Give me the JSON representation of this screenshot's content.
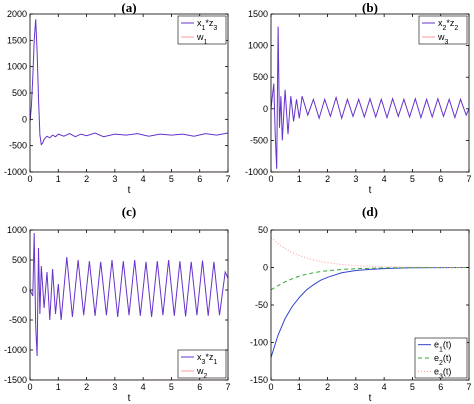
{
  "chart_data": [
    {
      "panel_label": "(a)",
      "type": "line",
      "xlabel": "t",
      "xlim": [
        0,
        7
      ],
      "ylim": [
        -1000,
        2000
      ],
      "xticks": [
        "0",
        "1",
        "2",
        "3",
        "4",
        "5",
        "6",
        "7"
      ],
      "yticks": [
        "-1000",
        "-500",
        "0",
        "500",
        "1000",
        "1500",
        "2000"
      ],
      "legend_position": "top-right",
      "series": [
        {
          "name": "x1*z3",
          "label_parts": [
            [
              "x",
              "1"
            ],
            [
              "*z",
              "3"
            ]
          ],
          "color": "#6633cc",
          "x": [
            0,
            0.05,
            0.1,
            0.15,
            0.2,
            0.25,
            0.3,
            0.35,
            0.4,
            0.45,
            0.5,
            0.6,
            0.7,
            0.8,
            0.9,
            1.0,
            1.2,
            1.4,
            1.6,
            1.8,
            2.0,
            2.3,
            2.6,
            3.0,
            3.4,
            3.8,
            4.2,
            4.6,
            5.0,
            5.4,
            5.8,
            6.2,
            6.6,
            7.0
          ],
          "y": [
            -50,
            250,
            800,
            1500,
            1900,
            1300,
            400,
            -300,
            -480,
            -450,
            -380,
            -320,
            -350,
            -300,
            -330,
            -280,
            -320,
            -270,
            -330,
            -280,
            -310,
            -260,
            -330,
            -280,
            -300,
            -270,
            -320,
            -280,
            -300,
            -280,
            -320,
            -270,
            -300,
            -260
          ]
        },
        {
          "name": "w1",
          "label_parts": [
            [
              "w",
              "1"
            ]
          ],
          "color": "#ff9999",
          "x": [
            0,
            7
          ],
          "y": [
            -1000,
            -1000
          ]
        }
      ]
    },
    {
      "panel_label": "(b)",
      "type": "line",
      "xlabel": "t",
      "xlim": [
        0,
        7
      ],
      "ylim": [
        -1000,
        1500
      ],
      "xticks": [
        "0",
        "1",
        "2",
        "3",
        "4",
        "5",
        "6",
        "7"
      ],
      "yticks": [
        "-1000",
        "-500",
        "0",
        "500",
        "1000",
        "1500"
      ],
      "legend_position": "top-right",
      "series": [
        {
          "name": "x2*z2",
          "label_parts": [
            [
              "x",
              "2"
            ],
            [
              "*z",
              "2"
            ]
          ],
          "color": "#6633cc",
          "x": [
            0,
            0.1,
            0.15,
            0.2,
            0.25,
            0.3,
            0.35,
            0.4,
            0.5,
            0.6,
            0.7,
            0.8,
            0.9,
            1.0,
            1.1,
            1.3,
            1.5,
            1.7,
            1.9,
            2.1,
            2.3,
            2.5,
            2.7,
            2.9,
            3.1,
            3.3,
            3.5,
            3.7,
            3.9,
            4.1,
            4.3,
            4.5,
            4.7,
            4.9,
            5.1,
            5.3,
            5.5,
            5.7,
            5.9,
            6.1,
            6.3,
            6.5,
            6.7,
            6.9,
            7.0
          ],
          "y": [
            0,
            400,
            -400,
            -950,
            1300,
            -300,
            200,
            -500,
            300,
            -400,
            200,
            -200,
            150,
            -150,
            200,
            -100,
            150,
            -150,
            150,
            -120,
            180,
            -150,
            150,
            -120,
            150,
            -130,
            160,
            -130,
            150,
            -140,
            160,
            -120,
            150,
            -130,
            160,
            -140,
            150,
            -130,
            160,
            -120,
            150,
            -140,
            150,
            -100,
            0
          ]
        },
        {
          "name": "w3",
          "label_parts": [
            [
              "w",
              "3"
            ]
          ],
          "color": "#ff9999",
          "x": [
            0,
            7
          ],
          "y": [
            -1000,
            -1000
          ]
        }
      ]
    },
    {
      "panel_label": "(c)",
      "type": "line",
      "xlabel": "t",
      "xlim": [
        0,
        7
      ],
      "ylim": [
        -1500,
        1000
      ],
      "xticks": [
        "0",
        "1",
        "2",
        "3",
        "4",
        "5",
        "6",
        "7"
      ],
      "yticks": [
        "-1500",
        "-1000",
        "-500",
        "0",
        "500",
        "1000"
      ],
      "legend_position": "bottom-right",
      "series": [
        {
          "name": "x3*z1",
          "label_parts": [
            [
              "x",
              "3"
            ],
            [
              "*z",
              "1"
            ]
          ],
          "color": "#6633cc",
          "x": [
            0,
            0.1,
            0.15,
            0.2,
            0.25,
            0.3,
            0.35,
            0.4,
            0.5,
            0.6,
            0.7,
            0.8,
            0.9,
            1.0,
            1.1,
            1.3,
            1.5,
            1.7,
            1.9,
            2.1,
            2.3,
            2.5,
            2.7,
            2.9,
            3.1,
            3.3,
            3.5,
            3.7,
            3.9,
            4.1,
            4.3,
            4.5,
            4.7,
            4.9,
            5.1,
            5.3,
            5.5,
            5.7,
            5.9,
            6.1,
            6.3,
            6.5,
            6.7,
            6.9,
            7.0
          ],
          "y": [
            0,
            -100,
            950,
            -600,
            -1100,
            700,
            -400,
            400,
            -300,
            300,
            -500,
            350,
            -400,
            100,
            -500,
            550,
            -450,
            500,
            -420,
            480,
            -430,
            470,
            -420,
            500,
            -450,
            480,
            -420,
            500,
            -430,
            470,
            -450,
            480,
            -420,
            500,
            -430,
            480,
            -440,
            470,
            -420,
            490,
            -430,
            470,
            -420,
            300,
            200
          ]
        },
        {
          "name": "w2",
          "label_parts": [
            [
              "w",
              "2"
            ]
          ],
          "color": "#ff9999",
          "x": [
            0,
            7
          ],
          "y": [
            -1500,
            -1500
          ]
        }
      ]
    },
    {
      "panel_label": "(d)",
      "type": "line",
      "xlabel": "t",
      "xlim": [
        0,
        7
      ],
      "ylim": [
        -150,
        50
      ],
      "xticks": [
        "0",
        "1",
        "2",
        "3",
        "4",
        "5",
        "6",
        "7"
      ],
      "yticks": [
        "-150",
        "-100",
        "-50",
        "0",
        "50"
      ],
      "legend_position": "bottom-right",
      "series": [
        {
          "name": "e1(t)",
          "label_parts": [
            [
              "e",
              "1"
            ],
            [
              "(t)",
              ""
            ]
          ],
          "color": "#3344cc",
          "dash": "",
          "x": [
            0,
            0.25,
            0.5,
            0.75,
            1.0,
            1.25,
            1.5,
            1.75,
            2.0,
            2.5,
            3.0,
            3.5,
            4.0,
            4.5,
            5.0,
            6.0,
            7.0
          ],
          "y": [
            -120,
            -90,
            -68,
            -52,
            -40,
            -30,
            -23,
            -17,
            -13,
            -7,
            -4,
            -2.5,
            -1.5,
            -0.8,
            -0.4,
            -0.1,
            0
          ]
        },
        {
          "name": "e2(t)",
          "label_parts": [
            [
              "e",
              "2"
            ],
            [
              "(t)",
              ""
            ]
          ],
          "color": "#33aa33",
          "dash": "4,3",
          "x": [
            0,
            0.25,
            0.5,
            0.75,
            1.0,
            1.25,
            1.5,
            1.75,
            2.0,
            2.5,
            3.0,
            3.5,
            4.0,
            5.0,
            6.0,
            7.0
          ],
          "y": [
            -30,
            -24,
            -19,
            -15,
            -11.5,
            -9,
            -7,
            -5.5,
            -4.3,
            -2.6,
            -1.6,
            -1,
            -0.6,
            -0.2,
            -0.05,
            0
          ]
        },
        {
          "name": "e3(t)",
          "label_parts": [
            [
              "e",
              "3"
            ],
            [
              "(t)",
              ""
            ]
          ],
          "color": "#ff9999",
          "dash": "1,2",
          "x": [
            0,
            0.25,
            0.5,
            0.75,
            1.0,
            1.25,
            1.5,
            1.75,
            2.0,
            2.5,
            3.0,
            3.5,
            4.0,
            5.0,
            6.0,
            7.0
          ],
          "y": [
            40,
            32,
            25,
            20,
            16,
            12.7,
            10,
            8,
            6.3,
            4,
            2.5,
            1.5,
            1,
            0.4,
            0.1,
            0
          ]
        }
      ]
    }
  ]
}
